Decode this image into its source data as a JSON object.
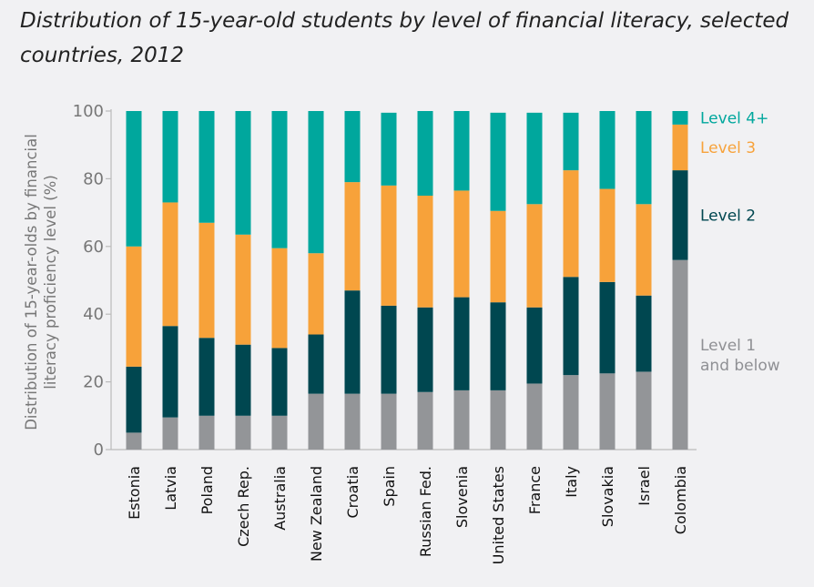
{
  "title": "Distribution of 15-year-old students by level of financial literacy, selected countries, 2012",
  "chart_data": {
    "type": "bar",
    "stacked": true,
    "title": "Distribution of 15-year-old students by level of financial literacy, selected countries, 2012",
    "xlabel": "",
    "ylabel_lines": [
      "Distribution of 15-year-olds by financial",
      "literacy proficiency level (%)"
    ],
    "ylim": [
      0,
      100
    ],
    "yticks": [
      0,
      20,
      40,
      60,
      80,
      100
    ],
    "grid": false,
    "legend_placement": "right",
    "categories": [
      "Estonia",
      "Latvia",
      "Poland",
      "Czech Rep.",
      "Australia",
      "New Zealand",
      "Croatia",
      "Spain",
      "Russian Fed.",
      "Slovenia",
      "United States",
      "France",
      "Italy",
      "Slovakia",
      "Israel",
      "Colombia"
    ],
    "series": [
      {
        "name": "Level 1 and below",
        "legend_lines": [
          "Level 1",
          "and below"
        ],
        "color": "#939598",
        "values": [
          5,
          9.5,
          10,
          10,
          10,
          16.5,
          16.5,
          16.5,
          17,
          17.5,
          17.5,
          19.5,
          22,
          22.5,
          23,
          56
        ]
      },
      {
        "name": "Level 2",
        "legend_lines": [
          "Level 2"
        ],
        "color": "#004750",
        "values": [
          19.5,
          27,
          23,
          21,
          20,
          17.5,
          30.5,
          26,
          25,
          27.5,
          26,
          22.5,
          29,
          27,
          22.5,
          26.5
        ]
      },
      {
        "name": "Level 3",
        "legend_lines": [
          "Level 3"
        ],
        "color": "#f7a23a",
        "values": [
          35.5,
          36.5,
          34,
          32.5,
          29.5,
          24,
          32,
          35.5,
          33,
          31.5,
          27,
          30.5,
          31.5,
          27.5,
          27,
          13.5
        ]
      },
      {
        "name": "Level 4+",
        "legend_lines": [
          "Level 4+"
        ],
        "color": "#00a79d",
        "values": [
          40,
          27,
          33,
          36.5,
          40.5,
          42,
          21,
          21.5,
          25,
          23.5,
          29,
          27,
          17,
          23,
          27.5,
          4
        ]
      }
    ]
  }
}
